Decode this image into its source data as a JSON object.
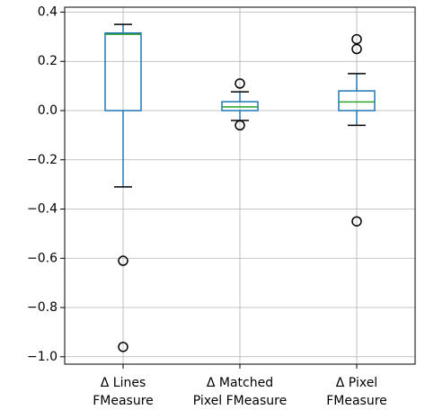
{
  "chart_data": {
    "type": "box",
    "categories": [
      [
        "Δ Lines",
        "FMeasure"
      ],
      [
        "Δ Matched",
        "Pixel FMeasure"
      ],
      [
        "Δ Pixel",
        "FMeasure"
      ]
    ],
    "boxes": [
      {
        "whislo": -0.31,
        "q1": 0.0,
        "med": 0.31,
        "q3": 0.315,
        "whishi": 0.35,
        "fliers": [
          -0.61,
          -0.96
        ]
      },
      {
        "whislo": -0.04,
        "q1": 0.0,
        "med": 0.015,
        "q3": 0.036,
        "whishi": 0.076,
        "fliers": [
          0.11,
          -0.06
        ]
      },
      {
        "whislo": -0.06,
        "q1": 0.0,
        "med": 0.035,
        "q3": 0.08,
        "whishi": 0.15,
        "fliers": [
          0.29,
          0.25,
          -0.45
        ]
      }
    ],
    "box_color": "#1f77b4",
    "median_color": "#2ca02c",
    "whisker_color": "#000000",
    "ylim": [
      -1.03,
      0.42
    ],
    "yticks": [
      {
        "value": -1.0,
        "label": "−1.0"
      },
      {
        "value": -0.8,
        "label": "−0.8"
      },
      {
        "value": -0.6,
        "label": "−0.6"
      },
      {
        "value": -0.4,
        "label": "−0.4"
      },
      {
        "value": -0.2,
        "label": "−0.2"
      },
      {
        "value": 0.0,
        "label": "0.0"
      },
      0.2,
      0.4
    ],
    "grid": true
  }
}
